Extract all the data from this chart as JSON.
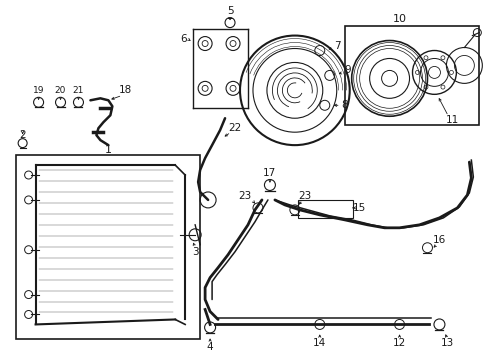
{
  "bg_color": "#ffffff",
  "fig_width": 4.89,
  "fig_height": 3.6,
  "dpi": 100,
  "black": "#1a1a1a",
  "gray": "#666666",
  "label_fs": 7.5,
  "small_fs": 6.5
}
